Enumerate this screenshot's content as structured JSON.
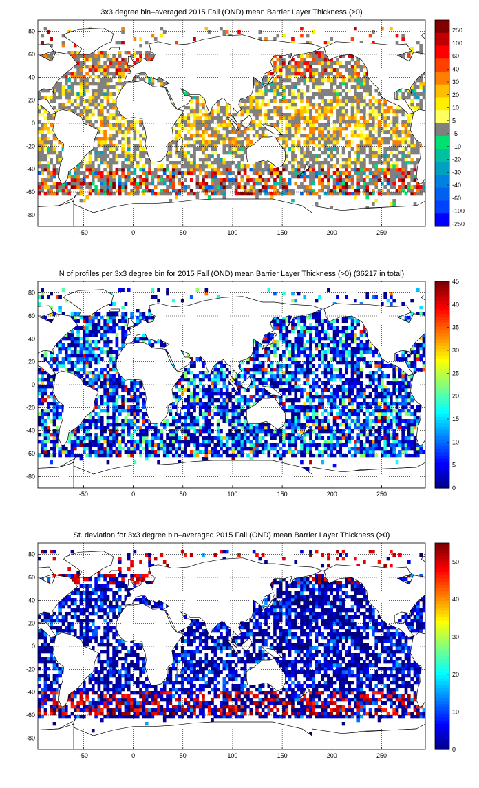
{
  "chart_data": [
    {
      "type": "heatmap",
      "title": "3x3 degree bin–averaged 2015 Fall (OND) mean Barrier Layer Thickness (>0)",
      "x_ticks": [
        -50,
        0,
        50,
        100,
        150,
        200,
        250
      ],
      "y_ticks": [
        80,
        60,
        40,
        20,
        0,
        -20,
        -40,
        -60,
        -80
      ],
      "xlim": [
        -96,
        294
      ],
      "ylim": [
        -90,
        90
      ],
      "grid": true,
      "colorbar": {
        "tick_labels": [
          "250",
          "100",
          "60",
          "40",
          "30",
          "20",
          "10",
          "5",
          "-5",
          "-10",
          "-20",
          "-30",
          "-40",
          "-60",
          "-100",
          "-250"
        ],
        "colors": [
          "#800000",
          "#c00000",
          "#ff0000",
          "#ff4000",
          "#ff8000",
          "#ffbf00",
          "#ffee00",
          "#ffff60",
          "#808080",
          "#00e070",
          "#00c0a0",
          "#00a0c0",
          "#0080e0",
          "#0060f0",
          "#0040ff",
          "#0000ff"
        ]
      }
    },
    {
      "type": "heatmap",
      "title": "N of profiles per 3x3 degree bin for 2015 Fall (OND) mean Barrier Layer Thickness (>0) (36217 in total)",
      "x_ticks": [
        -50,
        0,
        50,
        100,
        150,
        200,
        250
      ],
      "y_ticks": [
        80,
        60,
        40,
        20,
        0,
        -20,
        -40,
        -60,
        -80
      ],
      "xlim": [
        -96,
        294
      ],
      "ylim": [
        -90,
        90
      ],
      "grid": true,
      "colorbar": {
        "range": [
          0,
          45
        ],
        "tick_labels": [
          "45",
          "40",
          "35",
          "30",
          "25",
          "20",
          "15",
          "10",
          "5",
          "0"
        ]
      }
    },
    {
      "type": "heatmap",
      "title": "St. deviation for 3x3 degree bin–averaged 2015 Fall (OND) mean Barrier Layer Thickness (>0)",
      "x_ticks": [
        -50,
        0,
        50,
        100,
        150,
        200,
        250
      ],
      "y_ticks": [
        80,
        60,
        40,
        20,
        0,
        -20,
        -40,
        -60,
        -80
      ],
      "xlim": [
        -96,
        294
      ],
      "ylim": [
        -90,
        90
      ],
      "grid": true,
      "colorbar": {
        "range": [
          0,
          55
        ],
        "tick_labels": [
          "50",
          "40",
          "30",
          "20",
          "10",
          "0"
        ]
      }
    }
  ]
}
